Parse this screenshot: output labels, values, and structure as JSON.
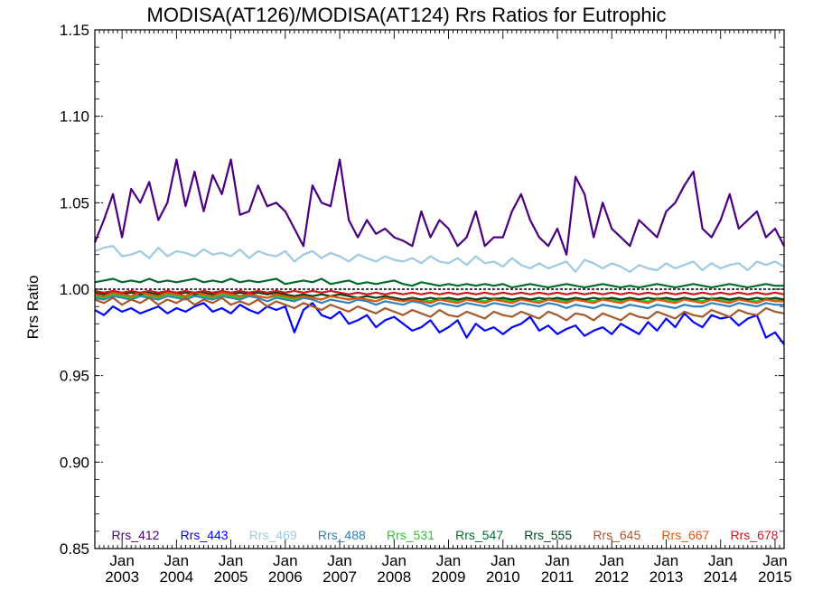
{
  "chart_data": {
    "type": "line",
    "title": "MODISA(AT126)/MODISA(AT124)  Rrs Ratios for Eutrophic",
    "xlabel": "",
    "ylabel": "Rrs Ratio",
    "x_range": [
      "2002-07",
      "2015-03"
    ],
    "ylim": [
      0.85,
      1.15
    ],
    "y_ticks": [
      "0.85",
      "0.90",
      "0.95",
      "1.00",
      "1.05",
      "1.10",
      "1.15"
    ],
    "x_tick_months": [
      "Jan",
      "Jan",
      "Jan",
      "Jan",
      "Jan",
      "Jan",
      "Jan",
      "Jan",
      "Jan",
      "Jan",
      "Jan",
      "Jan",
      "Jan"
    ],
    "x_tick_years": [
      "2003",
      "2004",
      "2005",
      "2006",
      "2007",
      "2008",
      "2009",
      "2010",
      "2011",
      "2012",
      "2013",
      "2014",
      "2015"
    ],
    "x_tick_dates": [
      "2003-01",
      "2004-01",
      "2005-01",
      "2006-01",
      "2007-01",
      "2008-01",
      "2009-01",
      "2010-01",
      "2011-01",
      "2012-01",
      "2013-01",
      "2014-01",
      "2015-01"
    ],
    "reference_line": 1.0,
    "grid": false,
    "legend_position": "bottom",
    "x": [
      "2002-07",
      "2002-09",
      "2002-11",
      "2003-01",
      "2003-03",
      "2003-05",
      "2003-07",
      "2003-09",
      "2003-11",
      "2004-01",
      "2004-03",
      "2004-05",
      "2004-07",
      "2004-09",
      "2004-11",
      "2005-01",
      "2005-03",
      "2005-05",
      "2005-07",
      "2005-09",
      "2005-11",
      "2006-01",
      "2006-03",
      "2006-05",
      "2006-07",
      "2006-09",
      "2006-11",
      "2007-01",
      "2007-03",
      "2007-05",
      "2007-07",
      "2007-09",
      "2007-11",
      "2008-01",
      "2008-03",
      "2008-05",
      "2008-07",
      "2008-09",
      "2008-11",
      "2009-01",
      "2009-03",
      "2009-05",
      "2009-07",
      "2009-09",
      "2009-11",
      "2010-01",
      "2010-03",
      "2010-05",
      "2010-07",
      "2010-09",
      "2010-11",
      "2011-01",
      "2011-03",
      "2011-05",
      "2011-07",
      "2011-09",
      "2011-11",
      "2012-01",
      "2012-03",
      "2012-05",
      "2012-07",
      "2012-09",
      "2012-11",
      "2013-01",
      "2013-03",
      "2013-05",
      "2013-07",
      "2013-09",
      "2013-11",
      "2014-01",
      "2014-03",
      "2014-05",
      "2014-07",
      "2014-09",
      "2014-11",
      "2015-01",
      "2015-03"
    ],
    "series": [
      {
        "name": "Rrs_412",
        "color": "#4b0082",
        "values": [
          1.027,
          1.04,
          1.055,
          1.03,
          1.058,
          1.05,
          1.062,
          1.04,
          1.05,
          1.075,
          1.048,
          1.068,
          1.045,
          1.066,
          1.055,
          1.075,
          1.043,
          1.045,
          1.06,
          1.048,
          1.05,
          1.045,
          1.035,
          1.025,
          1.06,
          1.05,
          1.048,
          1.075,
          1.04,
          1.03,
          1.04,
          1.032,
          1.035,
          1.03,
          1.028,
          1.025,
          1.045,
          1.03,
          1.04,
          1.035,
          1.025,
          1.03,
          1.045,
          1.025,
          1.03,
          1.03,
          1.045,
          1.055,
          1.04,
          1.03,
          1.025,
          1.035,
          1.02,
          1.065,
          1.055,
          1.03,
          1.05,
          1.035,
          1.03,
          1.025,
          1.04,
          1.035,
          1.03,
          1.045,
          1.05,
          1.06,
          1.068,
          1.035,
          1.03,
          1.04,
          1.055,
          1.035,
          1.04,
          1.045,
          1.03,
          1.035,
          1.025
        ]
      },
      {
        "name": "Rrs_443",
        "color": "#0000ff",
        "values": [
          0.988,
          0.985,
          0.99,
          0.987,
          0.989,
          0.986,
          0.988,
          0.99,
          0.986,
          0.989,
          0.987,
          0.99,
          0.992,
          0.987,
          0.989,
          0.986,
          0.991,
          0.988,
          0.986,
          0.99,
          0.988,
          0.99,
          0.975,
          0.988,
          0.992,
          0.985,
          0.983,
          0.987,
          0.98,
          0.982,
          0.985,
          0.978,
          0.982,
          0.984,
          0.98,
          0.976,
          0.978,
          0.982,
          0.975,
          0.978,
          0.982,
          0.972,
          0.98,
          0.976,
          0.978,
          0.974,
          0.978,
          0.98,
          0.984,
          0.976,
          0.979,
          0.974,
          0.977,
          0.979,
          0.973,
          0.976,
          0.978,
          0.974,
          0.98,
          0.977,
          0.974,
          0.981,
          0.976,
          0.983,
          0.978,
          0.986,
          0.981,
          0.978,
          0.985,
          0.983,
          0.984,
          0.979,
          0.983,
          0.985,
          0.972,
          0.975,
          0.968
        ]
      },
      {
        "name": "Rrs_469",
        "color": "#9ecae1",
        "values": [
          1.022,
          1.024,
          1.025,
          1.019,
          1.02,
          1.022,
          1.018,
          1.024,
          1.019,
          1.022,
          1.021,
          1.019,
          1.023,
          1.02,
          1.021,
          1.019,
          1.023,
          1.018,
          1.022,
          1.02,
          1.019,
          1.022,
          1.016,
          1.02,
          1.022,
          1.018,
          1.021,
          1.019,
          1.016,
          1.02,
          1.018,
          1.016,
          1.019,
          1.017,
          1.016,
          1.018,
          1.015,
          1.019,
          1.016,
          1.015,
          1.018,
          1.014,
          1.019,
          1.015,
          1.016,
          1.013,
          1.018,
          1.014,
          1.012,
          1.015,
          1.012,
          1.014,
          1.016,
          1.01,
          1.017,
          1.015,
          1.012,
          1.015,
          1.013,
          1.01,
          1.014,
          1.012,
          1.011,
          1.015,
          1.012,
          1.014,
          1.016,
          1.011,
          1.015,
          1.012,
          1.014,
          1.015,
          1.011,
          1.016,
          1.014,
          1.016,
          1.013
        ]
      },
      {
        "name": "Rrs_488",
        "color": "#3182bd",
        "values": [
          0.995,
          0.994,
          0.996,
          0.995,
          0.994,
          0.996,
          0.995,
          0.994,
          0.996,
          0.995,
          0.994,
          0.996,
          0.995,
          0.994,
          0.996,
          0.995,
          0.994,
          0.996,
          0.995,
          0.993,
          0.995,
          0.994,
          0.993,
          0.995,
          0.994,
          0.992,
          0.994,
          0.993,
          0.992,
          0.994,
          0.993,
          0.991,
          0.993,
          0.992,
          0.991,
          0.993,
          0.992,
          0.99,
          0.992,
          0.991,
          0.99,
          0.992,
          0.991,
          0.99,
          0.992,
          0.991,
          0.99,
          0.992,
          0.991,
          0.99,
          0.992,
          0.991,
          0.989,
          0.991,
          0.99,
          0.989,
          0.991,
          0.99,
          0.989,
          0.991,
          0.99,
          0.989,
          0.991,
          0.99,
          0.989,
          0.991,
          0.99,
          0.99,
          0.992,
          0.991,
          0.99,
          0.992,
          0.991,
          0.99,
          0.992,
          0.991,
          0.991
        ]
      },
      {
        "name": "Rrs_531",
        "color": "#31c431",
        "values": [
          0.996,
          0.995,
          0.997,
          0.996,
          0.995,
          0.997,
          0.996,
          0.995,
          0.997,
          0.996,
          0.995,
          0.997,
          0.996,
          0.995,
          0.997,
          0.996,
          0.995,
          0.997,
          0.996,
          0.995,
          0.996,
          0.995,
          0.994,
          0.996,
          0.995,
          0.994,
          0.996,
          0.995,
          0.994,
          0.995,
          0.994,
          0.993,
          0.995,
          0.994,
          0.993,
          0.995,
          0.994,
          0.993,
          0.995,
          0.994,
          0.993,
          0.995,
          0.994,
          0.993,
          0.995,
          0.994,
          0.993,
          0.995,
          0.994,
          0.993,
          0.995,
          0.994,
          0.993,
          0.995,
          0.994,
          0.993,
          0.995,
          0.994,
          0.993,
          0.995,
          0.994,
          0.993,
          0.995,
          0.994,
          0.993,
          0.995,
          0.994,
          0.993,
          0.995,
          0.994,
          0.993,
          0.995,
          0.994,
          0.993,
          0.995,
          0.994,
          0.994
        ]
      },
      {
        "name": "Rrs_547",
        "color": "#006d2c",
        "values": [
          1.004,
          1.005,
          1.006,
          1.004,
          1.005,
          1.004,
          1.006,
          1.004,
          1.005,
          1.004,
          1.005,
          1.006,
          1.004,
          1.005,
          1.004,
          1.006,
          1.004,
          1.005,
          1.004,
          1.005,
          1.006,
          1.003,
          1.004,
          1.005,
          1.004,
          1.006,
          1.003,
          1.004,
          1.005,
          1.003,
          1.004,
          1.003,
          1.004,
          1.005,
          1.003,
          1.002,
          1.004,
          1.003,
          1.002,
          1.003,
          1.002,
          1.003,
          1.002,
          1.003,
          1.002,
          1.003,
          1.001,
          1.002,
          1.003,
          1.002,
          1.001,
          1.002,
          1.003,
          1.002,
          1.001,
          1.002,
          1.003,
          1.002,
          1.001,
          1.002,
          1.001,
          1.002,
          1.003,
          1.002,
          1.001,
          1.002,
          1.003,
          1.002,
          1.001,
          1.002,
          1.003,
          1.002,
          1.001,
          1.002,
          1.003,
          1.002,
          1.002
        ]
      },
      {
        "name": "Rrs_555",
        "color": "#00441b",
        "values": [
          0.998,
          0.997,
          0.998,
          0.997,
          0.998,
          0.997,
          0.998,
          0.997,
          0.998,
          0.997,
          0.998,
          0.997,
          0.998,
          0.997,
          0.998,
          0.997,
          0.998,
          0.997,
          0.998,
          0.997,
          0.998,
          0.997,
          0.996,
          0.997,
          0.996,
          0.997,
          0.996,
          0.997,
          0.996,
          0.995,
          0.996,
          0.995,
          0.996,
          0.995,
          0.994,
          0.995,
          0.994,
          0.995,
          0.994,
          0.995,
          0.994,
          0.995,
          0.994,
          0.995,
          0.994,
          0.995,
          0.994,
          0.995,
          0.994,
          0.995,
          0.994,
          0.995,
          0.994,
          0.995,
          0.994,
          0.995,
          0.994,
          0.995,
          0.994,
          0.995,
          0.994,
          0.995,
          0.994,
          0.995,
          0.994,
          0.995,
          0.994,
          0.995,
          0.994,
          0.995,
          0.994,
          0.995,
          0.994,
          0.995,
          0.994,
          0.995,
          0.994
        ]
      },
      {
        "name": "Rrs_645",
        "color": "#a6582a",
        "values": [
          0.994,
          0.992,
          0.995,
          0.991,
          0.994,
          0.992,
          0.995,
          0.991,
          0.994,
          0.992,
          0.995,
          0.991,
          0.994,
          0.992,
          0.995,
          0.991,
          0.993,
          0.991,
          0.994,
          0.99,
          0.993,
          0.991,
          0.989,
          0.992,
          0.99,
          0.988,
          0.991,
          0.989,
          0.987,
          0.99,
          0.988,
          0.986,
          0.989,
          0.987,
          0.985,
          0.988,
          0.986,
          0.984,
          0.988,
          0.985,
          0.984,
          0.987,
          0.985,
          0.983,
          0.987,
          0.985,
          0.984,
          0.987,
          0.985,
          0.983,
          0.987,
          0.985,
          0.982,
          0.986,
          0.985,
          0.982,
          0.986,
          0.984,
          0.982,
          0.986,
          0.984,
          0.983,
          0.987,
          0.985,
          0.983,
          0.987,
          0.985,
          0.984,
          0.988,
          0.986,
          0.984,
          0.988,
          0.986,
          0.985,
          0.989,
          0.987,
          0.986
        ]
      },
      {
        "name": "Rrs_667",
        "color": "#e6550d",
        "values": [
          0.997,
          0.996,
          0.998,
          0.997,
          0.996,
          0.998,
          0.997,
          0.996,
          0.998,
          0.997,
          0.996,
          0.998,
          0.997,
          0.996,
          0.998,
          0.997,
          0.996,
          0.997,
          0.996,
          0.995,
          0.997,
          0.996,
          0.995,
          0.996,
          0.995,
          0.994,
          0.996,
          0.995,
          0.994,
          0.995,
          0.994,
          0.993,
          0.995,
          0.994,
          0.993,
          0.994,
          0.993,
          0.992,
          0.994,
          0.993,
          0.992,
          0.994,
          0.993,
          0.992,
          0.994,
          0.993,
          0.992,
          0.994,
          0.993,
          0.992,
          0.994,
          0.993,
          0.992,
          0.994,
          0.993,
          0.992,
          0.994,
          0.993,
          0.992,
          0.994,
          0.993,
          0.992,
          0.994,
          0.993,
          0.992,
          0.994,
          0.993,
          0.992,
          0.994,
          0.993,
          0.992,
          0.994,
          0.993,
          0.992,
          0.994,
          0.993,
          0.993
        ]
      },
      {
        "name": "Rrs_678",
        "color": "#cb181d",
        "values": [
          0.999,
          0.998,
          0.999,
          0.998,
          0.999,
          0.998,
          0.999,
          0.998,
          0.999,
          0.998,
          0.999,
          0.998,
          0.999,
          0.998,
          0.999,
          0.998,
          0.999,
          0.998,
          0.999,
          0.998,
          0.999,
          0.998,
          0.999,
          0.998,
          0.999,
          0.998,
          0.999,
          0.998,
          0.997,
          0.998,
          0.997,
          0.998,
          0.997,
          0.998,
          0.997,
          0.998,
          0.997,
          0.998,
          0.997,
          0.998,
          0.997,
          0.998,
          0.997,
          0.998,
          0.997,
          0.998,
          0.997,
          0.998,
          0.997,
          0.998,
          0.997,
          0.998,
          0.997,
          0.998,
          0.997,
          0.998,
          0.997,
          0.998,
          0.997,
          0.998,
          0.997,
          0.998,
          0.997,
          0.998,
          0.997,
          0.998,
          0.997,
          0.998,
          0.997,
          0.998,
          0.997,
          0.998,
          0.997,
          0.998,
          0.997,
          0.998,
          0.997
        ]
      }
    ]
  }
}
